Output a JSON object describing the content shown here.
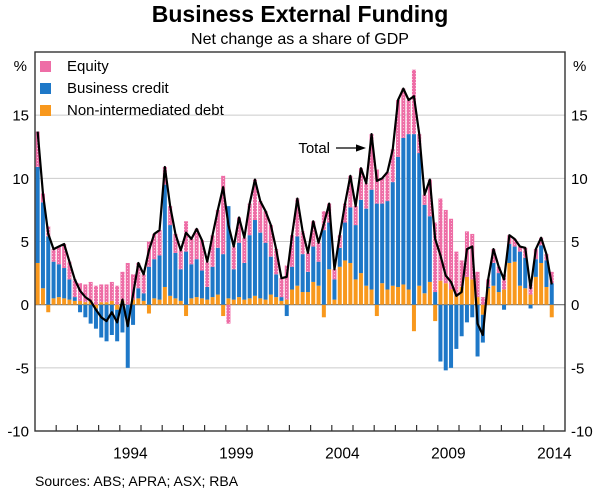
{
  "title": "Business External Funding",
  "subtitle": "Net change as a share of GDP",
  "sources": "Sources: ABS; APRA; ASX; RBA",
  "annotation": {
    "label": "Total"
  },
  "y_axis": {
    "unit": "%"
  },
  "legend": {
    "items": [
      {
        "label": "Equity",
        "color": "#ee6da6",
        "pattern": "dots"
      },
      {
        "label": "Business credit",
        "color": "#1e78c8",
        "pattern": "solid"
      },
      {
        "label": "Non-intermediated debt",
        "color": "#f8981d",
        "pattern": "solid"
      }
    ]
  },
  "chart_data": {
    "type": "bar",
    "subtype": "stacked-quarterly-with-total-line",
    "title": "Business External Funding",
    "subtitle": "Net change as a share of GDP",
    "x_start": 1990,
    "x_end": 2015,
    "first_quarter": "1990Q1",
    "last_quarter": "2014Q2",
    "ylim": [
      -10,
      20
    ],
    "yticks": [
      15,
      10,
      5,
      0,
      -5,
      -10
    ],
    "gridlines": [
      15,
      10,
      5,
      -5
    ],
    "xticklabels": [
      1994,
      1999,
      2004,
      2009,
      2014
    ],
    "grid_color": "#cbcbcb",
    "zero_line_color": "#6e6e6e",
    "frame_color": "#333333",
    "line_color": "#000000",
    "line_name": "Total",
    "series": [
      {
        "name": "Non-intermediated debt",
        "color": "#f8981d",
        "pattern": "solid",
        "values": [
          3.3,
          1.3,
          -0.6,
          0.5,
          0.6,
          0.5,
          0.4,
          0.3,
          0.3,
          0.2,
          0.3,
          -0.3,
          0.2,
          0.2,
          0.3,
          -0.4,
          0.3,
          0.0,
          0.4,
          0.5,
          0.3,
          -0.7,
          0.5,
          0.4,
          1.4,
          0.7,
          0.5,
          0.3,
          -0.9,
          0.5,
          0.6,
          0.5,
          0.4,
          0.6,
          0.8,
          -0.9,
          0.5,
          0.4,
          0.6,
          0.4,
          0.5,
          0.7,
          0.5,
          0.4,
          0.8,
          0.6,
          0.3,
          0.4,
          1.2,
          1.5,
          1.0,
          1.0,
          1.8,
          1.5,
          -1.0,
          2.8,
          0.4,
          3.0,
          3.5,
          3.3,
          2.0,
          2.5,
          1.5,
          1.2,
          -0.9,
          1.7,
          1.2,
          1.5,
          1.4,
          1.6,
          1.2,
          -2.1,
          1.5,
          0.9,
          1.8,
          -1.3,
          1.9,
          1.7,
          1.2,
          0.8,
          1.4,
          2.2,
          2.0,
          0.6,
          -0.8,
          1.3,
          1.5,
          1.0,
          1.2,
          3.3,
          3.4,
          1.5,
          1.3,
          0.8,
          2.2,
          3.3,
          1.4,
          -1.0
        ]
      },
      {
        "name": "Business credit",
        "color": "#1e78c8",
        "pattern": "solid",
        "values": [
          7.6,
          6.8,
          5.4,
          2.9,
          2.6,
          2.4,
          1.6,
          0.3,
          -0.6,
          -1.0,
          -1.5,
          -1.6,
          -2.6,
          -2.9,
          -2.4,
          -2.5,
          -2.2,
          -5.0,
          -1.6,
          0.8,
          0.6,
          3.0,
          3.1,
          3.5,
          8.1,
          5.6,
          3.6,
          2.5,
          4.2,
          2.7,
          3.0,
          2.2,
          1.0,
          2.4,
          3.7,
          4.0,
          7.3,
          2.4,
          4.3,
          2.9,
          5.0,
          6.0,
          5.2,
          4.5,
          3.0,
          1.8,
          0.3,
          -0.9,
          1.8,
          3.9,
          3.0,
          1.6,
          2.8,
          1.9,
          5.9,
          3.7,
          1.6,
          1.5,
          3.0,
          4.4,
          4.3,
          5.8,
          6.1,
          7.9,
          8.0,
          6.3,
          7.0,
          8.2,
          10.3,
          11.6,
          12.3,
          13.5,
          10.5,
          7.0,
          5.2,
          1.0,
          -4.5,
          -5.2,
          -5.0,
          -3.5,
          -2.5,
          -1.4,
          -1.0,
          -4.1,
          -2.2,
          0.1,
          1.8,
          1.5,
          -0.4,
          1.5,
          1.2,
          2.7,
          2.4,
          -0.3,
          1.4,
          1.4,
          2.1,
          1.7
        ]
      },
      {
        "name": "Equity",
        "color": "#ee6da6",
        "pattern": "dots",
        "values": [
          2.8,
          0.7,
          0.8,
          1.0,
          1.4,
          1.9,
          1.4,
          1.4,
          1.4,
          1.4,
          1.5,
          1.5,
          1.4,
          1.4,
          1.5,
          1.5,
          2.3,
          3.3,
          2.0,
          2.0,
          1.5,
          2.0,
          2.0,
          2.0,
          1.4,
          1.5,
          1.5,
          1.5,
          2.4,
          2.0,
          2.4,
          2.4,
          2.0,
          2.5,
          3.0,
          6.2,
          -1.5,
          1.8,
          2.0,
          2.0,
          2.5,
          3.2,
          2.5,
          2.5,
          2.5,
          2.0,
          1.5,
          2.7,
          2.5,
          3.0,
          1.8,
          1.5,
          2.0,
          1.5,
          1.5,
          1.5,
          0.8,
          1.0,
          1.5,
          2.5,
          1.5,
          2.5,
          2.0,
          4.4,
          2.7,
          2.0,
          2.3,
          2.6,
          4.5,
          3.9,
          2.7,
          5.1,
          1.5,
          0.8,
          2.9,
          5.5,
          6.5,
          5.8,
          5.6,
          3.4,
          2.1,
          3.6,
          3.6,
          2.0,
          0.6,
          0.6,
          1.1,
          0.5,
          1.2,
          0.7,
          0.6,
          0.4,
          0.8,
          0.8,
          0.8,
          0.6,
          0.5,
          0.9
        ]
      }
    ]
  }
}
